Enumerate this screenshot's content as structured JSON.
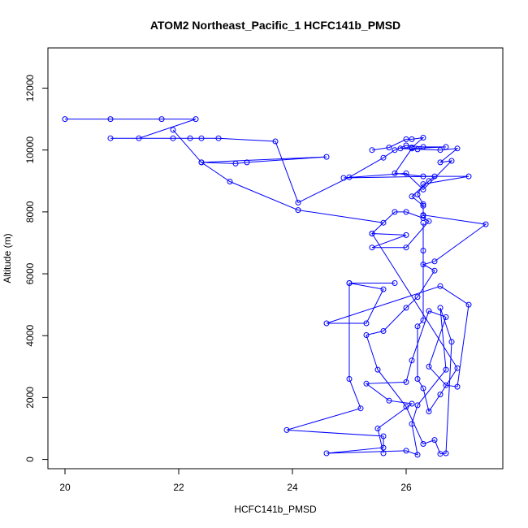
{
  "chart_data": {
    "type": "line",
    "title": "ATOM2 Northeast_Pacific_1 HCFC141b_PMSD",
    "xlabel": "HCFC141b_PMSD",
    "ylabel": "Altitude (m)",
    "xlim": [
      19.7,
      27.7
    ],
    "ylim": [
      -300,
      13300
    ],
    "x_ticks": [
      20,
      22,
      24,
      26
    ],
    "x_tick_labels": [
      "20",
      "22",
      "24",
      "26"
    ],
    "y_ticks": [
      0,
      2000,
      4000,
      6000,
      8000,
      10000,
      12000
    ],
    "y_tick_labels": [
      "0",
      "2000",
      "4000",
      "6000",
      "8000",
      "10000",
      "12000"
    ],
    "marker": "open-circle",
    "line_color": "#0000ff",
    "grid": false,
    "legend": "none",
    "series": [
      {
        "points": [
          [
            20.0,
            11000
          ],
          [
            20.8,
            11000
          ],
          [
            21.7,
            11000
          ],
          [
            22.3,
            11000
          ],
          [
            21.3,
            10380
          ],
          [
            20.8,
            10380
          ],
          [
            21.9,
            10380
          ],
          [
            22.2,
            10380
          ],
          [
            22.4,
            10380
          ],
          [
            22.7,
            10380
          ],
          [
            23.7,
            10280
          ],
          [
            24.1,
            8300
          ],
          [
            25.0,
            9120
          ],
          [
            25.6,
            9750
          ],
          [
            25.8,
            10000
          ],
          [
            26.0,
            10150
          ],
          [
            26.3,
            10100
          ],
          [
            26.7,
            10100
          ],
          [
            26.1,
            10050
          ],
          [
            25.8,
            9250
          ],
          [
            26.3,
            9150
          ],
          [
            27.1,
            9150
          ],
          [
            26.3,
            8900
          ],
          [
            26.2,
            8560
          ],
          [
            26.3,
            8250
          ],
          [
            26.3,
            7900
          ],
          [
            27.4,
            7600
          ],
          [
            26.5,
            6400
          ],
          [
            26.3,
            6300
          ],
          [
            26.5,
            6100
          ],
          [
            26.2,
            5250
          ],
          [
            26.0,
            4900
          ],
          [
            25.6,
            4150
          ],
          [
            25.3,
            4020
          ],
          [
            25.5,
            2900
          ],
          [
            26.0,
            1700
          ],
          [
            26.3,
            500
          ],
          [
            26.5,
            630
          ],
          [
            26.6,
            180
          ],
          [
            26.7,
            200
          ],
          [
            26.8,
            3800
          ],
          [
            26.6,
            4900
          ],
          [
            26.7,
            2900
          ],
          [
            26.2,
            1750
          ],
          [
            26.1,
            1150
          ],
          [
            26.2,
            150
          ],
          [
            26.0,
            280
          ],
          [
            24.6,
            200
          ],
          [
            25.6,
            380
          ],
          [
            25.6,
            750
          ],
          [
            23.9,
            950
          ],
          [
            25.2,
            1650
          ],
          [
            25.0,
            2600
          ],
          [
            25.0,
            5700
          ],
          [
            25.8,
            5700
          ],
          [
            25.0,
            5700
          ],
          [
            25.6,
            5500
          ],
          [
            25.3,
            4400
          ],
          [
            24.6,
            4400
          ],
          [
            26.6,
            5600
          ],
          [
            27.1,
            5000
          ],
          [
            26.9,
            2350
          ],
          [
            26.7,
            2400
          ],
          [
            26.4,
            3000
          ],
          [
            26.7,
            4600
          ],
          [
            26.4,
            4800
          ],
          [
            26.1,
            3200
          ],
          [
            26.0,
            2500
          ],
          [
            25.3,
            2450
          ],
          [
            25.7,
            1900
          ],
          [
            26.1,
            1800
          ],
          [
            25.5,
            1000
          ],
          [
            25.6,
            200
          ]
        ]
      },
      {
        "points": [
          [
            21.9,
            10650
          ],
          [
            22.4,
            9600
          ],
          [
            23.0,
            9560
          ],
          [
            23.2,
            9600
          ],
          [
            24.6,
            9780
          ],
          [
            22.4,
            9600
          ],
          [
            22.9,
            8980
          ],
          [
            24.1,
            8060
          ],
          [
            25.6,
            7650
          ],
          [
            25.4,
            7300
          ],
          [
            26.0,
            7250
          ],
          [
            25.4,
            6850
          ],
          [
            26.0,
            6850
          ],
          [
            26.4,
            7700
          ],
          [
            26.3,
            7800
          ],
          [
            26.0,
            8000
          ],
          [
            25.8,
            8000
          ],
          [
            25.4,
            7300
          ],
          [
            26.9,
            2950
          ],
          [
            26.6,
            2100
          ],
          [
            26.4,
            1550
          ],
          [
            26.3,
            2300
          ],
          [
            26.2,
            2600
          ],
          [
            26.2,
            4300
          ],
          [
            26.3,
            4500
          ],
          [
            26.3,
            6750
          ],
          [
            26.3,
            7650
          ]
        ]
      },
      {
        "points": [
          [
            25.4,
            10000
          ],
          [
            25.7,
            10080
          ],
          [
            26.0,
            10350
          ],
          [
            26.1,
            10350
          ],
          [
            26.3,
            10400
          ],
          [
            26.1,
            10080
          ],
          [
            25.9,
            10050
          ],
          [
            26.2,
            10020
          ],
          [
            26.6,
            10000
          ],
          [
            26.9,
            10050
          ],
          [
            26.6,
            9600
          ],
          [
            26.8,
            9650
          ],
          [
            26.3,
            8720
          ],
          [
            26.0,
            9250
          ],
          [
            24.9,
            9100
          ],
          [
            26.5,
            9150
          ],
          [
            26.4,
            9000
          ],
          [
            26.1,
            8500
          ],
          [
            26.3,
            8200
          ],
          [
            26.3,
            7880
          ]
        ]
      }
    ]
  }
}
